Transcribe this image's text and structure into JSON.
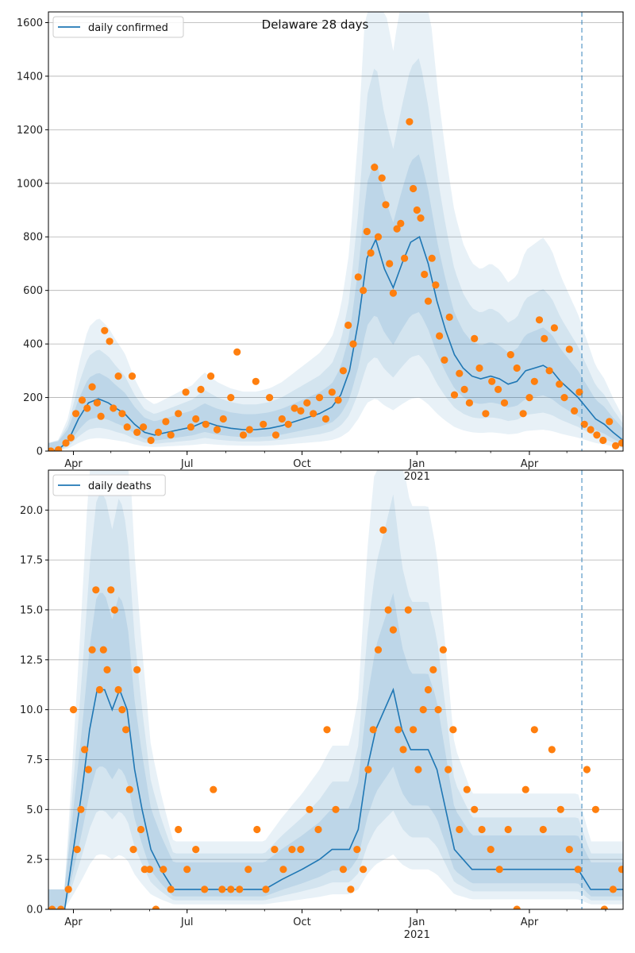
{
  "figure": {
    "title": "Delaware 28 days"
  },
  "chart_data": [
    {
      "type": "line",
      "title": "",
      "legend": {
        "position": "top-left",
        "entries": [
          "daily confirmed"
        ]
      },
      "xlabel": "",
      "ylabel": "",
      "ylim": [
        0,
        1640
      ],
      "yticks": [
        0,
        200,
        400,
        600,
        800,
        1000,
        1200,
        1400,
        1600
      ],
      "xlim": [
        "2020-03-12",
        "2021-06-15"
      ],
      "xticks": [
        {
          "date": "2020-04-01",
          "label": "Apr"
        },
        {
          "date": "2020-07-01",
          "label": "Jul"
        },
        {
          "date": "2020-10-01",
          "label": "Oct"
        },
        {
          "date": "2021-01-01",
          "label": "Jan",
          "sublabel": "2021"
        },
        {
          "date": "2021-04-01",
          "label": "Apr"
        }
      ],
      "grid": "horizontal",
      "forecast_start": "2021-05-13",
      "series": [
        {
          "name": "daily confirmed",
          "kind": "line",
          "color": "#1f77b4",
          "x": [
            "2020-03-12",
            "2020-03-20",
            "2020-03-28",
            "2020-04-05",
            "2020-04-13",
            "2020-04-21",
            "2020-04-29",
            "2020-05-05",
            "2020-05-12",
            "2020-05-20",
            "2020-05-28",
            "2020-06-05",
            "2020-06-15",
            "2020-06-25",
            "2020-07-05",
            "2020-07-15",
            "2020-07-25",
            "2020-08-05",
            "2020-08-15",
            "2020-08-25",
            "2020-09-05",
            "2020-09-15",
            "2020-09-25",
            "2020-10-05",
            "2020-10-15",
            "2020-10-25",
            "2020-11-01",
            "2020-11-08",
            "2020-11-15",
            "2020-11-22",
            "2020-11-29",
            "2020-12-06",
            "2020-12-13",
            "2020-12-20",
            "2020-12-27",
            "2021-01-03",
            "2021-01-10",
            "2021-01-17",
            "2021-01-24",
            "2021-01-31",
            "2021-02-07",
            "2021-02-14",
            "2021-02-21",
            "2021-03-01",
            "2021-03-08",
            "2021-03-15",
            "2021-03-22",
            "2021-03-29",
            "2021-04-05",
            "2021-04-12",
            "2021-04-19",
            "2021-04-26",
            "2021-05-03",
            "2021-05-10",
            "2021-05-17",
            "2021-05-24",
            "2021-05-31",
            "2021-06-07",
            "2021-06-15"
          ],
          "y": [
            0,
            5,
            40,
            120,
            180,
            195,
            180,
            160,
            140,
            100,
            70,
            60,
            70,
            80,
            90,
            110,
            95,
            85,
            80,
            80,
            85,
            95,
            110,
            125,
            140,
            165,
            210,
            300,
            480,
            720,
            790,
            680,
            610,
            700,
            780,
            800,
            700,
            560,
            450,
            360,
            310,
            280,
            270,
            280,
            270,
            250,
            260,
            300,
            310,
            320,
            300,
            260,
            230,
            200,
            160,
            120,
            100,
            70,
            40
          ]
        },
        {
          "name": "observed",
          "kind": "points",
          "color": "#ff7f0e",
          "x": [
            "2020-03-14",
            "2020-03-20",
            "2020-03-26",
            "2020-03-30",
            "2020-04-03",
            "2020-04-08",
            "2020-04-12",
            "2020-04-16",
            "2020-04-20",
            "2020-04-23",
            "2020-04-26",
            "2020-04-30",
            "2020-05-03",
            "2020-05-07",
            "2020-05-10",
            "2020-05-14",
            "2020-05-18",
            "2020-05-22",
            "2020-05-27",
            "2020-06-02",
            "2020-06-08",
            "2020-06-14",
            "2020-06-18",
            "2020-06-24",
            "2020-06-30",
            "2020-07-04",
            "2020-07-08",
            "2020-07-12",
            "2020-07-16",
            "2020-07-20",
            "2020-07-25",
            "2020-07-30",
            "2020-08-05",
            "2020-08-10",
            "2020-08-15",
            "2020-08-20",
            "2020-08-25",
            "2020-08-31",
            "2020-09-05",
            "2020-09-10",
            "2020-09-15",
            "2020-09-20",
            "2020-09-25",
            "2020-09-30",
            "2020-10-05",
            "2020-10-10",
            "2020-10-15",
            "2020-10-20",
            "2020-10-25",
            "2020-10-30",
            "2020-11-03",
            "2020-11-07",
            "2020-11-11",
            "2020-11-15",
            "2020-11-19",
            "2020-11-22",
            "2020-11-25",
            "2020-11-28",
            "2020-12-01",
            "2020-12-04",
            "2020-12-07",
            "2020-12-10",
            "2020-12-13",
            "2020-12-16",
            "2020-12-19",
            "2020-12-22",
            "2020-12-26",
            "2020-12-29",
            "2021-01-01",
            "2021-01-04",
            "2021-01-07",
            "2021-01-10",
            "2021-01-13",
            "2021-01-16",
            "2021-01-19",
            "2021-01-23",
            "2021-01-27",
            "2021-01-31",
            "2021-02-04",
            "2021-02-08",
            "2021-02-12",
            "2021-02-16",
            "2021-02-20",
            "2021-02-25",
            "2021-03-02",
            "2021-03-07",
            "2021-03-12",
            "2021-03-17",
            "2021-03-22",
            "2021-03-27",
            "2021-04-01",
            "2021-04-05",
            "2021-04-09",
            "2021-04-13",
            "2021-04-17",
            "2021-04-21",
            "2021-04-25",
            "2021-04-29",
            "2021-05-03",
            "2021-05-07",
            "2021-05-11",
            "2021-05-15",
            "2021-05-20",
            "2021-05-25",
            "2021-05-30",
            "2021-06-04",
            "2021-06-09",
            "2021-06-14"
          ],
          "y": [
            0,
            5,
            30,
            50,
            140,
            190,
            160,
            240,
            180,
            130,
            450,
            410,
            160,
            280,
            140,
            90,
            280,
            70,
            90,
            40,
            70,
            110,
            60,
            140,
            220,
            90,
            120,
            230,
            100,
            280,
            80,
            120,
            200,
            370,
            60,
            80,
            260,
            100,
            200,
            60,
            120,
            100,
            160,
            150,
            180,
            140,
            200,
            120,
            220,
            190,
            300,
            470,
            400,
            650,
            600,
            820,
            740,
            1060,
            800,
            1020,
            920,
            700,
            590,
            830,
            850,
            720,
            1230,
            980,
            900,
            870,
            660,
            560,
            720,
            620,
            430,
            340,
            500,
            210,
            290,
            230,
            180,
            420,
            310,
            140,
            260,
            230,
            180,
            360,
            310,
            140,
            200,
            260,
            490,
            420,
            300,
            460,
            250,
            200,
            380,
            150,
            220,
            100,
            80,
            60,
            40,
            110,
            20,
            30
          ]
        }
      ]
    },
    {
      "type": "line",
      "title": "",
      "legend": {
        "position": "top-left",
        "entries": [
          "daily deaths"
        ]
      },
      "xlabel": "",
      "ylabel": "",
      "ylim": [
        0,
        22
      ],
      "yticks": [
        0.0,
        2.5,
        5.0,
        7.5,
        10.0,
        12.5,
        15.0,
        17.5,
        20.0
      ],
      "xlim": [
        "2020-03-12",
        "2021-06-15"
      ],
      "xticks": [
        {
          "date": "2020-04-01",
          "label": "Apr"
        },
        {
          "date": "2020-07-01",
          "label": "Jul"
        },
        {
          "date": "2020-10-01",
          "label": "Oct"
        },
        {
          "date": "2021-01-01",
          "label": "Jan",
          "sublabel": "2021"
        },
        {
          "date": "2021-04-01",
          "label": "Apr"
        }
      ],
      "grid": "horizontal",
      "forecast_start": "2021-05-13",
      "series": [
        {
          "name": "daily deaths",
          "kind": "line",
          "color": "#1f77b4",
          "x": [
            "2020-03-12",
            "2020-03-25",
            "2020-04-01",
            "2020-04-08",
            "2020-04-14",
            "2020-04-20",
            "2020-04-26",
            "2020-05-02",
            "2020-05-08",
            "2020-05-14",
            "2020-05-20",
            "2020-05-26",
            "2020-06-02",
            "2020-06-10",
            "2020-06-20",
            "2020-07-01",
            "2020-07-15",
            "2020-08-01",
            "2020-08-15",
            "2020-09-01",
            "2020-09-15",
            "2020-10-01",
            "2020-10-15",
            "2020-10-25",
            "2020-11-01",
            "2020-11-08",
            "2020-11-15",
            "2020-11-22",
            "2020-11-29",
            "2020-12-06",
            "2020-12-13",
            "2020-12-20",
            "2020-12-27",
            "2021-01-03",
            "2021-01-10",
            "2021-01-17",
            "2021-01-24",
            "2021-01-31",
            "2021-02-07",
            "2021-02-14",
            "2021-02-21",
            "2021-03-01",
            "2021-03-15",
            "2021-04-01",
            "2021-04-15",
            "2021-05-01",
            "2021-05-10",
            "2021-05-20",
            "2021-06-01",
            "2021-06-15"
          ],
          "y": [
            0,
            0,
            3,
            6,
            9,
            11,
            11,
            10,
            11,
            10,
            7,
            5,
            3,
            2,
            1,
            1,
            1,
            1,
            1,
            1,
            1.5,
            2,
            2.5,
            3,
            3,
            3,
            4,
            7,
            9,
            10,
            11,
            9,
            8,
            8,
            8,
            7,
            5,
            3,
            2.5,
            2,
            2,
            2,
            2,
            2,
            2,
            2,
            2,
            1,
            1,
            1
          ]
        },
        {
          "name": "observed",
          "kind": "points",
          "color": "#ff7f0e",
          "x": [
            "2020-03-15",
            "2020-03-22",
            "2020-03-28",
            "2020-04-01",
            "2020-04-04",
            "2020-04-07",
            "2020-04-10",
            "2020-04-13",
            "2020-04-16",
            "2020-04-19",
            "2020-04-22",
            "2020-04-25",
            "2020-04-28",
            "2020-05-01",
            "2020-05-04",
            "2020-05-07",
            "2020-05-10",
            "2020-05-13",
            "2020-05-16",
            "2020-05-19",
            "2020-05-22",
            "2020-05-25",
            "2020-05-28",
            "2020-06-01",
            "2020-06-06",
            "2020-06-12",
            "2020-06-18",
            "2020-06-24",
            "2020-07-01",
            "2020-07-08",
            "2020-07-15",
            "2020-07-22",
            "2020-07-29",
            "2020-08-05",
            "2020-08-12",
            "2020-08-19",
            "2020-08-26",
            "2020-09-02",
            "2020-09-09",
            "2020-09-16",
            "2020-09-23",
            "2020-09-30",
            "2020-10-07",
            "2020-10-14",
            "2020-10-21",
            "2020-10-28",
            "2020-11-03",
            "2020-11-09",
            "2020-11-14",
            "2020-11-19",
            "2020-11-23",
            "2020-11-27",
            "2020-12-01",
            "2020-12-05",
            "2020-12-09",
            "2020-12-13",
            "2020-12-17",
            "2020-12-21",
            "2020-12-25",
            "2020-12-29",
            "2021-01-02",
            "2021-01-06",
            "2021-01-10",
            "2021-01-14",
            "2021-01-18",
            "2021-01-22",
            "2021-01-26",
            "2021-01-30",
            "2021-02-04",
            "2021-02-10",
            "2021-02-16",
            "2021-02-22",
            "2021-03-01",
            "2021-03-08",
            "2021-03-15",
            "2021-03-22",
            "2021-03-29",
            "2021-04-05",
            "2021-04-12",
            "2021-04-19",
            "2021-04-26",
            "2021-05-03",
            "2021-05-10",
            "2021-05-17",
            "2021-05-24",
            "2021-05-31",
            "2021-06-07",
            "2021-06-14"
          ],
          "y": [
            0,
            0,
            1,
            10,
            3,
            5,
            8,
            7,
            13,
            16,
            11,
            13,
            12,
            16,
            15,
            11,
            10,
            9,
            6,
            3,
            12,
            4,
            2,
            2,
            0,
            2,
            1,
            4,
            2,
            3,
            1,
            6,
            1,
            1,
            1,
            2,
            4,
            1,
            3,
            2,
            3,
            3,
            5,
            4,
            9,
            5,
            2,
            1,
            3,
            2,
            7,
            9,
            13,
            19,
            15,
            14,
            9,
            8,
            15,
            9,
            7,
            10,
            11,
            12,
            10,
            13,
            7,
            9,
            4,
            6,
            5,
            4,
            3,
            2,
            4,
            0,
            6,
            9,
            4,
            8,
            5,
            3,
            2,
            7,
            5,
            0,
            1,
            2
          ]
        }
      ]
    }
  ]
}
